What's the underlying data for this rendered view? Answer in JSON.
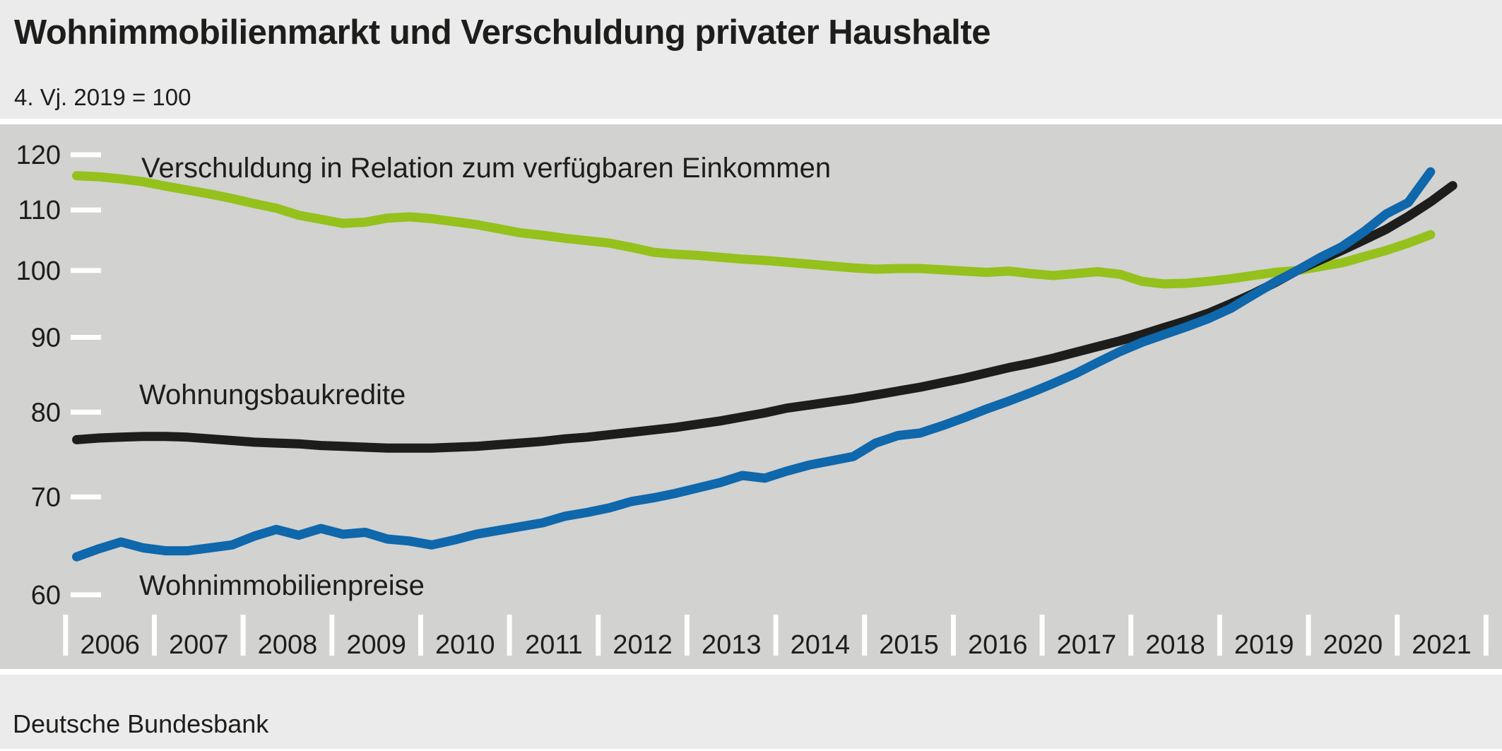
{
  "title": "Wohnimmobilienmarkt und Verschuldung privater Haushalte",
  "subtitle": "4. Vj. 2019 = 100",
  "source": "Deutsche Bundesbank",
  "colors": {
    "background": "#ebebeb",
    "plot_background": "#d2d2d0",
    "tick": "#ffffff",
    "text": "#1d1d1b",
    "series_green": "#94c11c",
    "series_black": "#1d1d1b",
    "series_blue": "#0f67ac"
  },
  "chart_data": {
    "type": "line",
    "title": "Wohnimmobilienmarkt und Verschuldung privater Haushalte",
    "subtitle": "4. Vj. 2019 = 100",
    "y_axis": {
      "scale": "log",
      "min": 60,
      "max": 120,
      "ticks": [
        120,
        110,
        100,
        90,
        80,
        70,
        60
      ],
      "grid": false
    },
    "x_axis": {
      "frequency": "quarterly",
      "start": "2006 Q1",
      "year_labels": [
        "2006",
        "2007",
        "2008",
        "2009",
        "2010",
        "2011",
        "2012",
        "2013",
        "2014",
        "2015",
        "2016",
        "2017",
        "2018",
        "2019",
        "2020",
        "2021"
      ]
    },
    "legend_position": "inline-labels",
    "series": [
      {
        "name": "Verschuldung in Relation zum verfügbaren Einkommen",
        "color_key": "series_green",
        "values": [
          116.1,
          115.9,
          115.5,
          115.0,
          114.2,
          113.5,
          112.8,
          112.0,
          111.1,
          110.3,
          109.1,
          108.4,
          107.7,
          107.9,
          108.6,
          108.8,
          108.5,
          108.0,
          107.5,
          106.8,
          106.1,
          105.7,
          105.2,
          104.8,
          104.4,
          103.7,
          102.9,
          102.6,
          102.4,
          102.1,
          101.8,
          101.6,
          101.3,
          101.0,
          100.7,
          100.4,
          100.2,
          100.3,
          100.3,
          100.1,
          99.9,
          99.7,
          99.9,
          99.5,
          99.2,
          99.5,
          99.8,
          99.4,
          98.3,
          97.9,
          98.0,
          98.3,
          98.7,
          99.2,
          99.7,
          100.0,
          100.6,
          101.2,
          102.2,
          103.2,
          104.4,
          105.8
        ]
      },
      {
        "name": "Wohnungsbaukredite",
        "color_key": "series_black",
        "values": [
          76.6,
          76.8,
          76.9,
          77.0,
          77.0,
          76.9,
          76.7,
          76.5,
          76.3,
          76.2,
          76.1,
          75.9,
          75.8,
          75.7,
          75.6,
          75.6,
          75.6,
          75.7,
          75.8,
          76.0,
          76.2,
          76.4,
          76.7,
          76.9,
          77.2,
          77.5,
          77.8,
          78.1,
          78.5,
          78.9,
          79.4,
          79.9,
          80.5,
          80.9,
          81.3,
          81.7,
          82.2,
          82.7,
          83.2,
          83.8,
          84.4,
          85.1,
          85.8,
          86.4,
          87.1,
          87.9,
          88.7,
          89.5,
          90.4,
          91.4,
          92.4,
          93.5,
          94.9,
          96.4,
          98.1,
          100.0,
          101.6,
          103.2,
          104.9,
          106.7,
          108.9,
          111.4,
          114.3
        ]
      },
      {
        "name": "Wohnimmobilienpreise",
        "color_key": "series_blue",
        "values": [
          63.7,
          64.5,
          65.2,
          64.6,
          64.3,
          64.3,
          64.6,
          64.9,
          65.8,
          66.5,
          65.9,
          66.6,
          66.0,
          66.2,
          65.5,
          65.3,
          64.9,
          65.4,
          66.0,
          66.4,
          66.8,
          67.2,
          67.9,
          68.3,
          68.8,
          69.5,
          69.9,
          70.4,
          71.0,
          71.6,
          72.4,
          72.1,
          72.9,
          73.6,
          74.1,
          74.6,
          76.2,
          77.1,
          77.4,
          78.3,
          79.3,
          80.4,
          81.4,
          82.5,
          83.7,
          85.0,
          86.5,
          88.0,
          89.3,
          90.4,
          91.5,
          92.7,
          94.2,
          96.2,
          98.2,
          100.0,
          102.0,
          103.8,
          106.3,
          109.3,
          111.3,
          116.8
        ]
      }
    ]
  }
}
